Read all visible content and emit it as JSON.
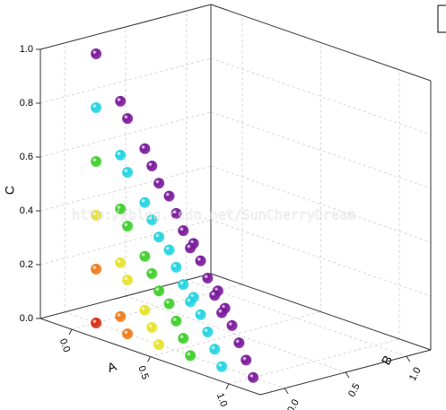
{
  "chart_data": {
    "type": "scatter3d",
    "x_label": "A",
    "y_label": "B",
    "z_label": "C",
    "watermark": "http://blog.csdn.net/SunCherryDream",
    "xlim": [
      -0.2,
      1.2
    ],
    "ylim": [
      -0.2,
      1.2
    ],
    "zlim": [
      0,
      1
    ],
    "xticks": [
      {
        "value": 0,
        "label": "0.0"
      },
      {
        "value": 0.5,
        "label": "0.5"
      },
      {
        "value": 1,
        "label": "1.0"
      }
    ],
    "yticks": [
      {
        "value": 0,
        "label": "0.0"
      },
      {
        "value": 0.5,
        "label": "0.5"
      },
      {
        "value": 1,
        "label": "1.0"
      }
    ],
    "zticks": [
      {
        "value": 0,
        "label": "0.0"
      },
      {
        "value": 0.2,
        "label": "0.2"
      },
      {
        "value": 0.4,
        "label": "0.4"
      },
      {
        "value": 0.6,
        "label": "0.6"
      },
      {
        "value": 0.8,
        "label": "0.8"
      },
      {
        "value": 1,
        "label": "1.0"
      }
    ],
    "grid": true,
    "x": [
      0,
      0.2,
      0.4,
      0.6,
      0.8,
      1,
      0,
      0.2,
      0.4,
      0.6,
      0.8,
      0,
      0.2,
      0.4,
      0.6,
      0,
      0.2,
      0.4,
      0,
      0.2,
      0,
      0,
      0.2,
      0.4,
      0.6,
      0.8,
      0,
      0.2,
      0.4,
      0.6,
      0,
      0.2,
      0.4,
      0,
      0.2,
      0,
      0,
      0.2,
      0.4,
      0.6,
      0,
      0.2,
      0.4,
      0,
      0.2,
      0,
      0,
      0.2,
      0.4,
      0,
      0.2,
      0,
      0,
      0.2,
      0,
      0
    ],
    "y": [
      0,
      0,
      0,
      0,
      0,
      0,
      0.2,
      0.2,
      0.2,
      0.2,
      0.2,
      0.4,
      0.4,
      0.4,
      0.4,
      0.6,
      0.6,
      0.6,
      0.8,
      0.8,
      1,
      0,
      0,
      0,
      0,
      0,
      0.2,
      0.2,
      0.2,
      0.2,
      0.4,
      0.4,
      0.4,
      0.6,
      0.6,
      0.8,
      0,
      0,
      0,
      0,
      0.2,
      0.2,
      0.2,
      0.4,
      0.4,
      0.6,
      0,
      0,
      0,
      0.2,
      0.2,
      0.4,
      0,
      0,
      0.2,
      0
    ],
    "z": [
      0,
      0,
      0,
      0,
      0,
      0,
      0,
      0,
      0,
      0,
      0,
      0,
      0,
      0,
      0,
      0,
      0,
      0,
      0,
      0,
      0,
      0.2,
      0.2,
      0.2,
      0.2,
      0.2,
      0.2,
      0.2,
      0.2,
      0.2,
      0.2,
      0.2,
      0.2,
      0.2,
      0.2,
      0.2,
      0.4,
      0.4,
      0.4,
      0.4,
      0.4,
      0.4,
      0.4,
      0.4,
      0.4,
      0.4,
      0.6,
      0.6,
      0.6,
      0.6,
      0.6,
      0.6,
      0.8,
      0.8,
      0.8,
      1
    ],
    "colors": [
      "#d42a12",
      "#ee7a1a",
      "#e5e22a",
      "#3fce2a",
      "#22d4e0",
      "#7a1a9a",
      "#ee7a1a",
      "#e5e22a",
      "#3fce2a",
      "#22d4e0",
      "#7a1a9a",
      "#e5e22a",
      "#3fce2a",
      "#22d4e0",
      "#7a1a9a",
      "#3fce2a",
      "#22d4e0",
      "#7a1a9a",
      "#22d4e0",
      "#7a1a9a",
      "#7a1a9a",
      "#ee7a1a",
      "#e5e22a",
      "#3fce2a",
      "#22d4e0",
      "#7a1a9a",
      "#e5e22a",
      "#3fce2a",
      "#22d4e0",
      "#7a1a9a",
      "#3fce2a",
      "#22d4e0",
      "#7a1a9a",
      "#22d4e0",
      "#7a1a9a",
      "#7a1a9a",
      "#e5e22a",
      "#3fce2a",
      "#22d4e0",
      "#7a1a9a",
      "#3fce2a",
      "#22d4e0",
      "#7a1a9a",
      "#22d4e0",
      "#7a1a9a",
      "#7a1a9a",
      "#3fce2a",
      "#22d4e0",
      "#7a1a9a",
      "#22d4e0",
      "#7a1a9a",
      "#7a1a9a",
      "#22d4e0",
      "#7a1a9a",
      "#7a1a9a",
      "#7a1a9a"
    ]
  }
}
